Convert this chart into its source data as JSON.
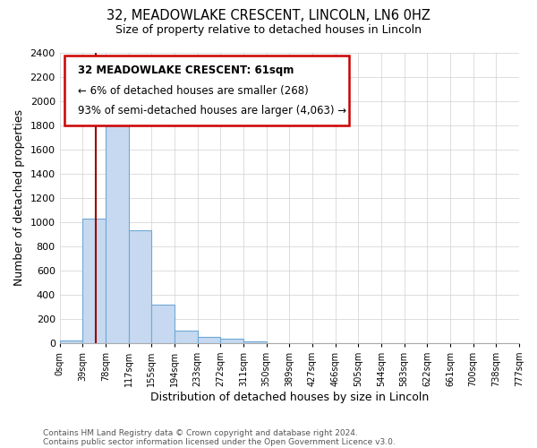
{
  "title": "32, MEADOWLAKE CRESCENT, LINCOLN, LN6 0HZ",
  "subtitle": "Size of property relative to detached houses in Lincoln",
  "xlabel": "Distribution of detached houses by size in Lincoln",
  "ylabel": "Number of detached properties",
  "bin_labels": [
    "0sqm",
    "39sqm",
    "78sqm",
    "117sqm",
    "155sqm",
    "194sqm",
    "233sqm",
    "272sqm",
    "311sqm",
    "350sqm",
    "389sqm",
    "427sqm",
    "466sqm",
    "505sqm",
    "544sqm",
    "583sqm",
    "622sqm",
    "661sqm",
    "700sqm",
    "738sqm",
    "777sqm"
  ],
  "bar_values": [
    20,
    1030,
    1900,
    930,
    320,
    105,
    50,
    35,
    15,
    0,
    0,
    0,
    0,
    0,
    0,
    0,
    0,
    0,
    0,
    0
  ],
  "bar_color": "#c6d9f0",
  "bar_edge_color": "#6fa8d6",
  "red_line_x": 1.564,
  "ylim": [
    0,
    2400
  ],
  "yticks": [
    0,
    200,
    400,
    600,
    800,
    1000,
    1200,
    1400,
    1600,
    1800,
    2000,
    2200,
    2400
  ],
  "annotation_title": "32 MEADOWLAKE CRESCENT: 61sqm",
  "annotation_line1": "← 6% of detached houses are smaller (268)",
  "annotation_line2": "93% of semi-detached houses are larger (4,063) →",
  "footer_line1": "Contains HM Land Registry data © Crown copyright and database right 2024.",
  "footer_line2": "Contains public sector information licensed under the Open Government Licence v3.0.",
  "background_color": "#ffffff",
  "plot_background_color": "#ffffff",
  "grid_color": "#d0d0d0",
  "annotation_box_edge_color": "#cc0000",
  "red_line_color": "#990000"
}
